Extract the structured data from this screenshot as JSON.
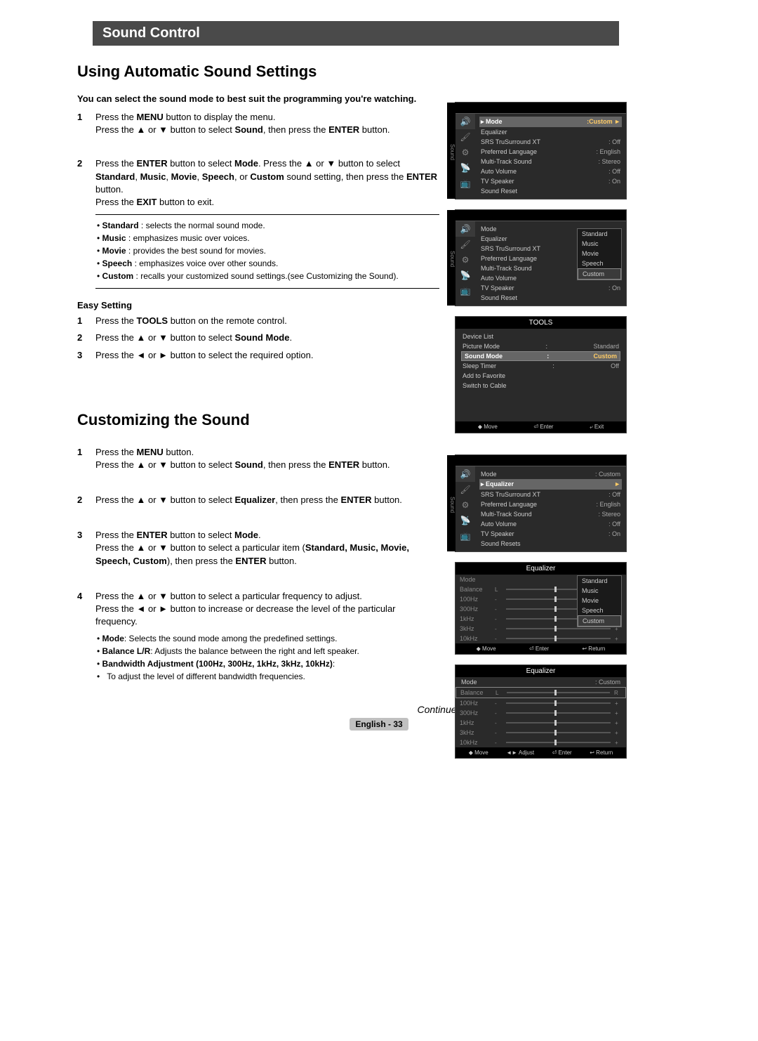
{
  "title_bar": "Sound Control",
  "section1": {
    "title": "Using Automatic Sound Settings",
    "intro": "You can select the sound mode to best suit the programming you're watching.",
    "steps": [
      {
        "n": "1",
        "lines": [
          "Press the <b>MENU</b> button to display the menu.",
          "Press the ▲ or ▼ button to select <b>Sound</b>, then press the <b>ENTER</b> button."
        ]
      },
      {
        "n": "2",
        "lines": [
          "Press the <b>ENTER</b> button to select <b>Mode</b>. Press the  ▲ or ▼ button to select <b>Standard</b>, <b>Music</b>, <b>Movie</b>, <b>Speech</b>, or <b>Custom</b> sound setting, then press the <b>ENTER</b> button.",
          "Press the <b>EXIT</b> button to exit."
        ]
      }
    ],
    "bullets": [
      "<b>Standard</b> : selects the normal sound mode.",
      "<b>Music</b> : emphasizes music over voices.",
      "<b>Movie</b> : provides the best sound for movies.",
      "<b>Speech</b> : emphasizes voice over other sounds.",
      "<b>Custom</b> : recalls your customized sound settings.(see Customizing the Sound)."
    ],
    "easy_title": "Easy Setting",
    "easy_steps": [
      {
        "n": "1",
        "t": "Press the <b>TOOLS</b> button on the remote control."
      },
      {
        "n": "2",
        "t": "Press the ▲ or ▼ button to select <b>Sound Mode</b>."
      },
      {
        "n": "3",
        "t": "Press the ◄ or ► button to select the required option."
      }
    ]
  },
  "section2": {
    "title": "Customizing the Sound",
    "steps": [
      {
        "n": "1",
        "lines": [
          "Press the <b>MENU</b> button.",
          "Press the ▲ or ▼ button to select <b>Sound</b>, then press the <b>ENTER</b> button."
        ]
      },
      {
        "n": "2",
        "lines": [
          "Press the ▲ or ▼ button to select <b>Equalizer</b>, then press the <b>ENTER</b> button."
        ]
      },
      {
        "n": "3",
        "lines": [
          "Press the <b>ENTER</b> button to select <b>Mode</b>.",
          "Press the ▲ or ▼ button to select a particular item (<b>Standard, Music, Movie, Speech, Custom</b>), then press the <b>ENTER</b> button."
        ]
      },
      {
        "n": "4",
        "lines": [
          "Press the ▲ or ▼ button to select a particular frequency to adjust.",
          "Press the ◄ or ► button to increase or decrease the level of the particular frequency."
        ]
      }
    ],
    "bullets2": [
      "<b>Mode</b>: Selects the sound mode among the predefined settings.",
      "<b>Balance L/R</b>: Adjusts the balance between the right and left speaker.",
      "<b>Bandwidth Adjustment (100Hz, 300Hz, 1kHz, 3kHz, 10kHz)</b>:",
      "To adjust the level of different bandwidth frequencies."
    ]
  },
  "continued": "Continued...",
  "footer": "English - 33",
  "osd": {
    "sidetab": "Sound",
    "menu1": {
      "rows": [
        {
          "k": "Mode",
          "v": ":Custom",
          "sel": true,
          "arrow": "►"
        },
        {
          "k": "Equalizer",
          "v": ""
        },
        {
          "k": "SRS TruSurround XT",
          "v": ": Off"
        },
        {
          "k": "Preferred Language",
          "v": ": English"
        },
        {
          "k": "Multi-Track Sound",
          "v": ": Stereo"
        },
        {
          "k": "Auto Volume",
          "v": ": Off"
        },
        {
          "k": "TV Speaker",
          "v": ": On"
        },
        {
          "k": "Sound Reset",
          "v": ""
        }
      ]
    },
    "menu2": {
      "rows": [
        {
          "k": "Mode",
          "v": ""
        },
        {
          "k": "Equalizer",
          "v": ""
        },
        {
          "k": "SRS TruSurround XT",
          "v": ""
        },
        {
          "k": "Preferred Language",
          "v": ""
        },
        {
          "k": "Multi-Track Sound",
          "v": ""
        },
        {
          "k": "Auto Volume",
          "v": ": Off"
        },
        {
          "k": "TV Speaker",
          "v": ": On"
        },
        {
          "k": "Sound Reset",
          "v": ""
        }
      ],
      "popup": [
        "Standard",
        "Music",
        "Movie",
        "Speech",
        "Custom"
      ],
      "popup_sel": 4
    },
    "tools": {
      "title": "TOOLS",
      "rows": [
        {
          "k": "Device List",
          "v": ""
        },
        {
          "k": "Picture Mode",
          "c": ":",
          "v": "Standard"
        },
        {
          "k": "Sound Mode",
          "c": ":",
          "v": "Custom",
          "sel": true
        },
        {
          "k": "Sleep Timer",
          "c": ":",
          "v": "Off"
        },
        {
          "k": "Add to Favorite",
          "v": ""
        },
        {
          "k": "Switch to Cable",
          "v": ""
        }
      ],
      "foot": [
        "◆ Move",
        "⏎ Enter",
        "⤶ Exit"
      ]
    },
    "menu3": {
      "rows": [
        {
          "k": "Mode",
          "v": ": Custom"
        },
        {
          "k": "Equalizer",
          "v": "",
          "sel": true,
          "arrow": "►"
        },
        {
          "k": "SRS TruSurround XT",
          "v": ": Off"
        },
        {
          "k": "Preferred Language",
          "v": ": English"
        },
        {
          "k": "Multi-Track Sound",
          "v": ": Stereo"
        },
        {
          "k": "Auto Volume",
          "v": ": Off"
        },
        {
          "k": "TV Speaker",
          "v": ": On"
        },
        {
          "k": "Sound Resets",
          "v": ""
        }
      ]
    },
    "eq1": {
      "title": "Equalizer",
      "rows": [
        "Mode",
        "Balance",
        "100Hz",
        "300Hz",
        "1kHz",
        "3kHz",
        "10kHz"
      ],
      "popup": [
        "Standard",
        "Music",
        "Movie",
        "Speech",
        "Custom"
      ],
      "popup_sel": 4,
      "foot": [
        "◆ Move",
        "⏎ Enter",
        "↩ Return"
      ]
    },
    "eq2": {
      "title": "Equalizer",
      "mode": ": Custom",
      "rows": [
        "Balance",
        "100Hz",
        "300Hz",
        "1kHz",
        "3kHz",
        "10kHz"
      ],
      "balance_sel": true,
      "foot": [
        "◆ Move",
        "◄► Adjust",
        "⏎ Enter",
        "↩ Return"
      ]
    }
  }
}
